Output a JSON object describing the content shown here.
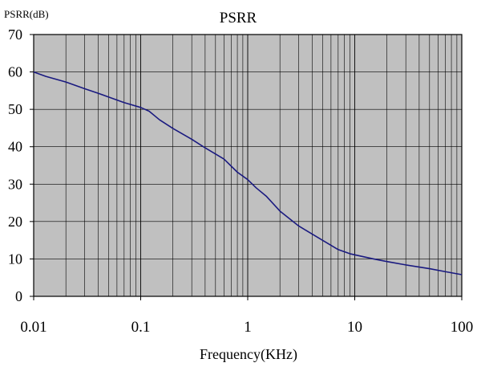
{
  "chart_data": {
    "type": "line",
    "title": "PSRR",
    "ylabel": "PSRR(dB)",
    "xlabel": "Frequency(KHz)",
    "x_scale": "log",
    "xlim": [
      0.01,
      100
    ],
    "ylim": [
      0,
      70
    ],
    "x_ticks": [
      "0.01",
      "0.1",
      "1",
      "10",
      "100"
    ],
    "y_ticks": [
      "0",
      "10",
      "20",
      "30",
      "40",
      "50",
      "60",
      "70"
    ],
    "grid": true,
    "legend": "none",
    "colors": {
      "plot_background": "#c0c0c0",
      "line": "#1a1a80",
      "grid": "#000000"
    },
    "series": [
      {
        "x": [
          0.01,
          0.013,
          0.02,
          0.03,
          0.04,
          0.05,
          0.07,
          0.1,
          0.12,
          0.15,
          0.2,
          0.3,
          0.4,
          0.6,
          0.8,
          1,
          1.2,
          1.5,
          2,
          3,
          5,
          7,
          9,
          10,
          15,
          20,
          30,
          50,
          70,
          100
        ],
        "y": [
          60,
          58.8,
          57.3,
          55.5,
          54.3,
          53.3,
          51.8,
          50.5,
          49.5,
          47.2,
          44.9,
          42,
          39.7,
          36.7,
          33.2,
          31.2,
          29,
          26.7,
          22.8,
          18.8,
          15,
          12.5,
          11.4,
          11.1,
          10,
          9.3,
          8.4,
          7.4,
          6.6,
          5.8
        ]
      }
    ]
  }
}
